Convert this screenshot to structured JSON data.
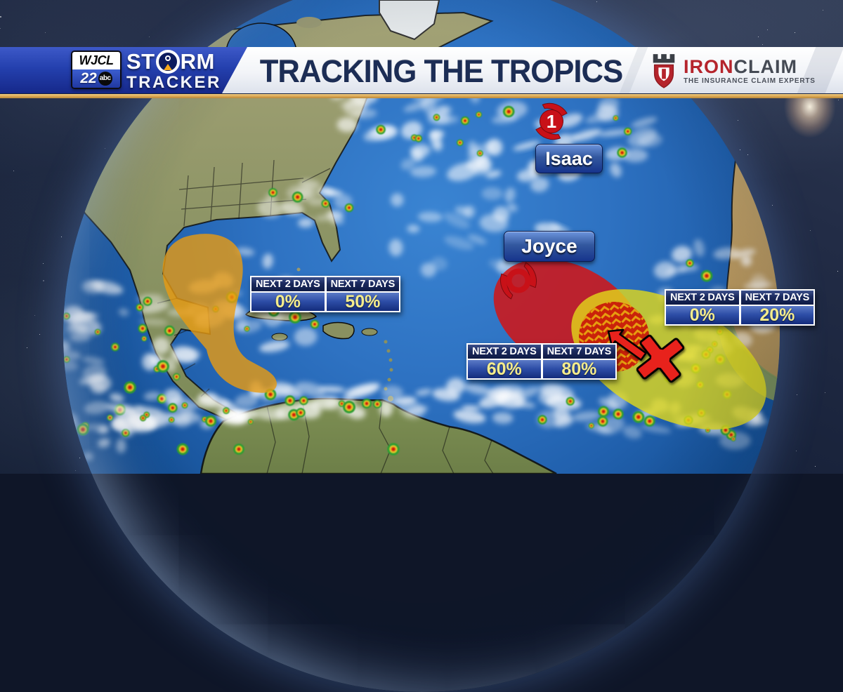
{
  "station": {
    "call_sign": "WJCL",
    "channel": "22",
    "network": "abc",
    "brand_line1": "STORM",
    "brand_line1_pre": "ST",
    "brand_line1_post": "RM",
    "brand_line2": "TRACKER"
  },
  "header": {
    "title": "TRACKING THE TROPICS"
  },
  "sponsor": {
    "name_red": "IRON",
    "name_dark": "CLAIM",
    "tagline": "THE INSURANCE CLAIM EXPERTS",
    "icon": "shield-castle-icon"
  },
  "storms": [
    {
      "name": "Isaac",
      "type": "hurricane",
      "category": "1",
      "symbol_color": "#c81118",
      "icon": "hurricane-category-icon"
    },
    {
      "name": "Joyce",
      "type": "tropical-storm",
      "symbol_color": "#c81118",
      "icon": "tropical-storm-icon"
    }
  ],
  "development_areas": [
    {
      "name": "Gulf of Mexico area",
      "chance_color": "#e89b12",
      "outlook": [
        {
          "label": "NEXT 2 DAYS",
          "value": "0%"
        },
        {
          "label": "NEXT 7 DAYS",
          "value": "50%"
        }
      ]
    },
    {
      "name": "Central Atlantic area",
      "chance_color": "#d41414",
      "marker": "x-marker",
      "outlook": [
        {
          "label": "NEXT 2 DAYS",
          "value": "60%"
        },
        {
          "label": "NEXT 7 DAYS",
          "value": "80%"
        }
      ]
    },
    {
      "name": "Eastern Atlantic area",
      "chance_color": "#e2da1a",
      "outlook": [
        {
          "label": "NEXT 2 DAYS",
          "value": "0%"
        },
        {
          "label": "NEXT 7 DAYS",
          "value": "20%"
        }
      ]
    }
  ]
}
